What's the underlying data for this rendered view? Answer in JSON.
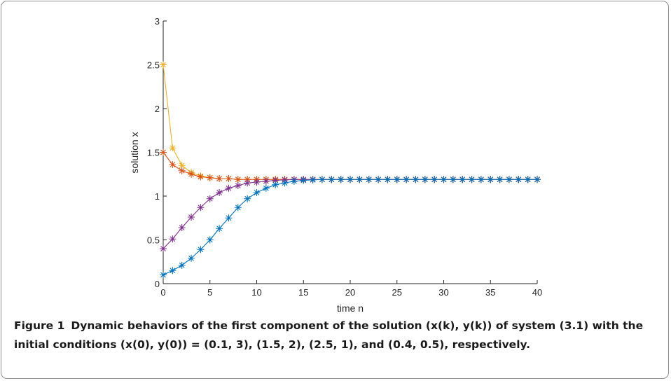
{
  "figure": {
    "label": "Figure 1",
    "caption": "Dynamic behaviors of the first component of the solution (x(k), y(k)) of system (3.1) with the initial conditions (x(0), y(0)) = (0.1, 3), (1.5, 2), (2.5, 1), and (0.4, 0.5), respectively."
  },
  "chart_data": {
    "type": "line",
    "title": "",
    "xlabel": "time n",
    "ylabel": "solution x",
    "xlim": [
      0,
      40
    ],
    "ylim": [
      0,
      3
    ],
    "xticks": [
      0,
      5,
      10,
      15,
      20,
      25,
      30,
      35,
      40
    ],
    "yticks": [
      0,
      0.5,
      1,
      1.5,
      2,
      2.5,
      3
    ],
    "ytick_labels": [
      "0",
      "0.5",
      "1",
      "1.5",
      "2",
      "2.5",
      "3"
    ],
    "grid": false,
    "legend": "none",
    "marker": "asterisk",
    "x": [
      0,
      1,
      2,
      3,
      4,
      5,
      6,
      7,
      8,
      9,
      10,
      11,
      12,
      13,
      14,
      15,
      16,
      17,
      18,
      19,
      20,
      21,
      22,
      23,
      24,
      25,
      26,
      27,
      28,
      29,
      30,
      31,
      32,
      33,
      34,
      35,
      36,
      37,
      38,
      39,
      40
    ],
    "series": [
      {
        "color": "#EDB120",
        "values": [
          2.5,
          1.55,
          1.35,
          1.27,
          1.23,
          1.21,
          1.2,
          1.2,
          1.19,
          1.19,
          1.19,
          1.19,
          1.19,
          1.19,
          1.19,
          1.19,
          1.19,
          1.19,
          1.19,
          1.19,
          1.19,
          1.19,
          1.19,
          1.19,
          1.19,
          1.19,
          1.19,
          1.19,
          1.19,
          1.19,
          1.19,
          1.19,
          1.19,
          1.19,
          1.19,
          1.19,
          1.19,
          1.19,
          1.19,
          1.19,
          1.19
        ]
      },
      {
        "color": "#D95319",
        "values": [
          1.5,
          1.36,
          1.29,
          1.25,
          1.22,
          1.21,
          1.2,
          1.2,
          1.19,
          1.19,
          1.19,
          1.19,
          1.19,
          1.19,
          1.19,
          1.19,
          1.19,
          1.19,
          1.19,
          1.19,
          1.19,
          1.19,
          1.19,
          1.19,
          1.19,
          1.19,
          1.19,
          1.19,
          1.19,
          1.19,
          1.19,
          1.19,
          1.19,
          1.19,
          1.19,
          1.19,
          1.19,
          1.19,
          1.19,
          1.19,
          1.19
        ]
      },
      {
        "color": "#7E2F8E",
        "values": [
          0.4,
          0.51,
          0.64,
          0.76,
          0.87,
          0.97,
          1.04,
          1.09,
          1.12,
          1.15,
          1.16,
          1.17,
          1.18,
          1.185,
          1.19,
          1.19,
          1.19,
          1.19,
          1.19,
          1.19,
          1.19,
          1.19,
          1.19,
          1.19,
          1.19,
          1.19,
          1.19,
          1.19,
          1.19,
          1.19,
          1.19,
          1.19,
          1.19,
          1.19,
          1.19,
          1.19,
          1.19,
          1.19,
          1.19,
          1.19,
          1.19
        ]
      },
      {
        "color": "#0072BD",
        "values": [
          0.1,
          0.15,
          0.21,
          0.29,
          0.39,
          0.5,
          0.63,
          0.75,
          0.87,
          0.97,
          1.04,
          1.09,
          1.13,
          1.15,
          1.17,
          1.18,
          1.185,
          1.19,
          1.19,
          1.19,
          1.19,
          1.19,
          1.19,
          1.19,
          1.19,
          1.19,
          1.19,
          1.19,
          1.19,
          1.19,
          1.19,
          1.19,
          1.19,
          1.19,
          1.19,
          1.19,
          1.19,
          1.19,
          1.19,
          1.19,
          1.19
        ]
      }
    ]
  }
}
